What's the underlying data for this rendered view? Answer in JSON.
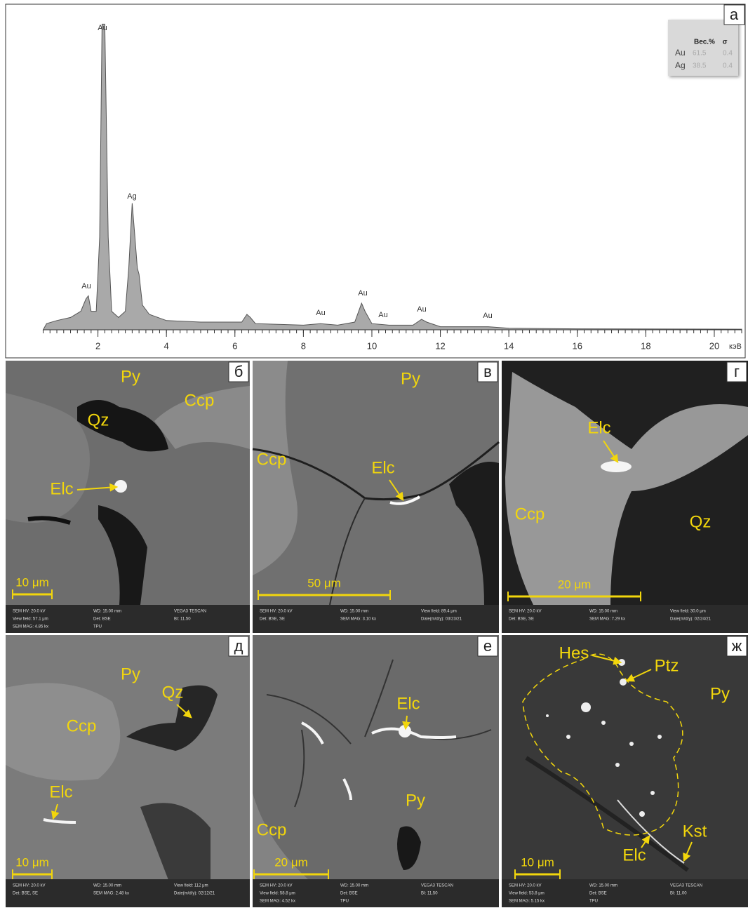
{
  "chart_data": {
    "type": "area",
    "letter": "а",
    "x_unit": "кэВ",
    "x": [
      0.4,
      0.5,
      0.8,
      1.2,
      1.5,
      1.65,
      1.72,
      1.8,
      1.95,
      2.05,
      2.12,
      2.2,
      2.3,
      2.4,
      2.6,
      2.8,
      2.9,
      3.0,
      3.08,
      3.15,
      3.2,
      3.3,
      3.5,
      4.0,
      5.0,
      6.2,
      6.35,
      6.45,
      6.6,
      8.0,
      8.5,
      9.0,
      9.5,
      9.7,
      9.8,
      10.0,
      10.5,
      11.2,
      11.45,
      11.6,
      12.0,
      13.4,
      14.0,
      16.0,
      20.8
    ],
    "values": [
      0,
      2,
      3,
      4,
      6,
      10,
      11,
      6,
      6,
      30,
      99,
      99,
      30,
      6,
      4,
      6,
      20,
      41,
      30,
      20,
      18,
      8,
      5,
      3,
      2.5,
      2.5,
      5,
      4,
      2,
      1.5,
      2,
      1.5,
      2.5,
      8.6,
      6,
      2,
      1.5,
      1.5,
      3.4,
      2.5,
      1,
      1,
      0.5,
      0.3,
      0.2
    ],
    "xlim": [
      0.4,
      20.8
    ],
    "ylim": [
      0,
      100
    ],
    "xticks": [
      2,
      4,
      6,
      8,
      10,
      12,
      14,
      16,
      18,
      20
    ],
    "color": "#a9a9a9",
    "peak_labels": [
      "Au",
      "Ag",
      "Au",
      "Au",
      "Au",
      "Au",
      "Au",
      "Au"
    ],
    "table": {
      "header": [
        "Вес.%",
        "σ"
      ],
      "rows": [
        [
          "Au",
          "61.5",
          "0.4"
        ],
        [
          "Ag",
          "38.5",
          "0.4"
        ]
      ]
    }
  },
  "panels": [
    {
      "letter": "б",
      "labels": [
        "Py",
        "Ccp",
        "Qz",
        "Elc"
      ],
      "scale_bar": "10 μm",
      "footer": [
        "SEM HV: 20.0 kV",
        "WD: 15.00 mm",
        "VEGA3 TESCAN",
        "View field: 57.1 μm",
        "Det: BSE",
        "BI: 11.50",
        "SEM MAG: 4.85 kx",
        "TPU"
      ]
    },
    {
      "letter": "в",
      "labels": [
        "Py",
        "Ccp",
        "Elc"
      ],
      "scale_bar": "50 μm",
      "footer": [
        "SEM HV: 20.0 kV",
        "WD: 15.00 mm",
        "View field: 89.4 μm",
        "Det: BSE, SE",
        "SEM MAG: 3.10 kx",
        "Date(m/d/y): 03/23/21"
      ]
    },
    {
      "letter": "г",
      "labels": [
        "Elc",
        "Ccp",
        "Qz"
      ],
      "scale_bar": "20 μm",
      "footer": [
        "SEM HV: 20.0 kV",
        "WD: 15.00 mm",
        "View field: 30.0 μm",
        "Det: BSE, SE",
        "SEM MAG: 7.29 kx",
        "Date(m/d/y): 02/24/21"
      ]
    },
    {
      "letter": "д",
      "labels": [
        "Py",
        "Qz",
        "Ccp",
        "Elc"
      ],
      "scale_bar": "10 μm",
      "footer": [
        "SEM HV: 20.0 kV",
        "WD: 15.00 mm",
        "View field: 112 μm",
        "Det: BSE, SE",
        "SEM MAG: 2.48 kx",
        "Date(m/d/y): 02/12/21"
      ]
    },
    {
      "letter": "е",
      "labels": [
        "Elc",
        "Py",
        "Ccp"
      ],
      "scale_bar": "20 μm",
      "footer": [
        "SEM HV: 20.0 kV",
        "WD: 15.00 mm",
        "VEGA3 TESCAN",
        "View field: 58.8 μm",
        "Det: BSE",
        "BI: 11.50",
        "SEM MAG: 4.52 kx",
        "TPU"
      ]
    },
    {
      "letter": "ж",
      "labels": [
        "Hes",
        "Ptz",
        "Py",
        "Kst",
        "Elc"
      ],
      "scale_bar": "10 μm",
      "footer": [
        "SEM HV: 20.0 kV",
        "WD: 15.00 mm",
        "VEGA3 TESCAN",
        "View field: 53.8 μm",
        "Det: BSE",
        "BI: 11.00",
        "SEM MAG: 5.15 kx",
        "TPU"
      ]
    }
  ]
}
